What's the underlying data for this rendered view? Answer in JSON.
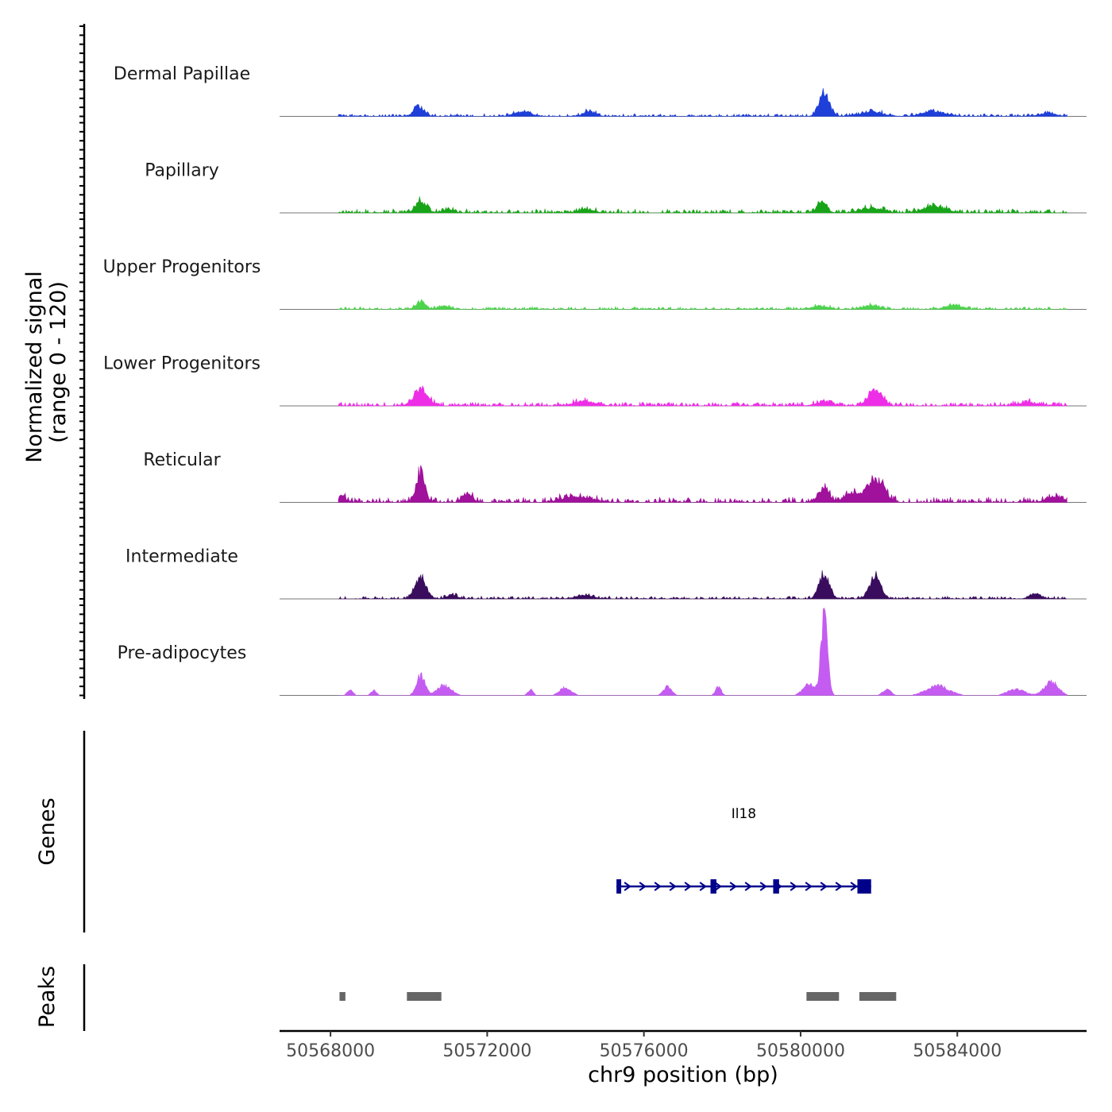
{
  "chart_data": {
    "type": "area",
    "title": "",
    "chromosome": "chr9",
    "xlabel": "chr9 position (bp)",
    "ylabel": "Normalized signal",
    "ylabel_range": "(range 0 - 120)",
    "xlim": [
      50566700,
      50587300
    ],
    "ylim": [
      0,
      120
    ],
    "x_ticks": [
      50568000,
      50572000,
      50576000,
      50580000,
      50584000
    ],
    "x_tick_labels": [
      "50568000",
      "50572000",
      "50576000",
      "50580000",
      "50584000"
    ],
    "signal_start": 50568200,
    "signal_end": 50586800,
    "series": [
      {
        "name": "Dermal Papillae",
        "color": "#1f3fd9",
        "base": 2,
        "peaks": [
          [
            50570250,
            14,
            180
          ],
          [
            50572900,
            6,
            300
          ],
          [
            50574600,
            7,
            200
          ],
          [
            50580600,
            35,
            180
          ],
          [
            50581800,
            6,
            400
          ],
          [
            50583400,
            6,
            400
          ],
          [
            50586300,
            4,
            300
          ]
        ]
      },
      {
        "name": "Papillary",
        "color": "#18a418",
        "base": 3,
        "peaks": [
          [
            50570300,
            16,
            180
          ],
          [
            50571000,
            5,
            200
          ],
          [
            50574500,
            5,
            250
          ],
          [
            50580550,
            17,
            160
          ],
          [
            50581800,
            6,
            400
          ],
          [
            50583400,
            8,
            400
          ]
        ]
      },
      {
        "name": "Upper Progenitors",
        "color": "#4dd44d",
        "base": 2,
        "peaks": [
          [
            50570300,
            10,
            180
          ],
          [
            50570900,
            4,
            200
          ],
          [
            50580500,
            4,
            300
          ],
          [
            50581800,
            5,
            300
          ],
          [
            50583900,
            5,
            300
          ]
        ]
      },
      {
        "name": "Lower Progenitors",
        "color": "#ee2ee6",
        "base": 3,
        "peaks": [
          [
            50570300,
            23,
            250
          ],
          [
            50574500,
            6,
            400
          ],
          [
            50580600,
            5,
            300
          ],
          [
            50581900,
            22,
            250
          ],
          [
            50585800,
            4,
            400
          ]
        ]
      },
      {
        "name": "Reticular",
        "color": "#a0119c",
        "base": 4,
        "peaks": [
          [
            50568300,
            10,
            120
          ],
          [
            50570300,
            42,
            150
          ],
          [
            50571500,
            12,
            150
          ],
          [
            50574300,
            8,
            500
          ],
          [
            50580600,
            18,
            200
          ],
          [
            50581300,
            13,
            250
          ],
          [
            50581900,
            32,
            300
          ],
          [
            50586500,
            7,
            300
          ]
        ]
      },
      {
        "name": "Intermediate",
        "color": "#3a0c5e",
        "base": 2,
        "peaks": [
          [
            50570300,
            30,
            200
          ],
          [
            50571100,
            5,
            200
          ],
          [
            50574500,
            5,
            300
          ],
          [
            50580600,
            35,
            180
          ],
          [
            50581900,
            32,
            200
          ],
          [
            50586000,
            7,
            200
          ]
        ]
      },
      {
        "name": "Pre-adipocytes",
        "color": "#c55cf2",
        "base": 0,
        "peaks": [
          [
            50568500,
            8,
            100
          ],
          [
            50569100,
            7,
            100
          ],
          [
            50570300,
            28,
            150
          ],
          [
            50570900,
            14,
            250
          ],
          [
            50573100,
            8,
            100
          ],
          [
            50574000,
            11,
            200
          ],
          [
            50576600,
            12,
            150
          ],
          [
            50577900,
            12,
            100
          ],
          [
            50580600,
            110,
            120
          ],
          [
            50580200,
            16,
            200
          ],
          [
            50582200,
            8,
            150
          ],
          [
            50583500,
            13,
            400
          ],
          [
            50585500,
            9,
            300
          ],
          [
            50586400,
            19,
            250
          ]
        ]
      }
    ],
    "genes": [
      {
        "name": "Il18",
        "start": 50575300,
        "end": 50581800,
        "strand": "+",
        "exons": [
          [
            50575300,
            50575420
          ],
          [
            50577700,
            50577850
          ],
          [
            50579300,
            50579450
          ],
          [
            50581450,
            50581800
          ]
        ]
      }
    ],
    "peaks": [
      [
        50568230,
        50568380
      ],
      [
        50569950,
        50570830
      ],
      [
        50580150,
        50580980
      ],
      [
        50581500,
        50582440
      ]
    ],
    "panel_titles": {
      "genes": "Genes",
      "peaks": "Peaks"
    }
  }
}
